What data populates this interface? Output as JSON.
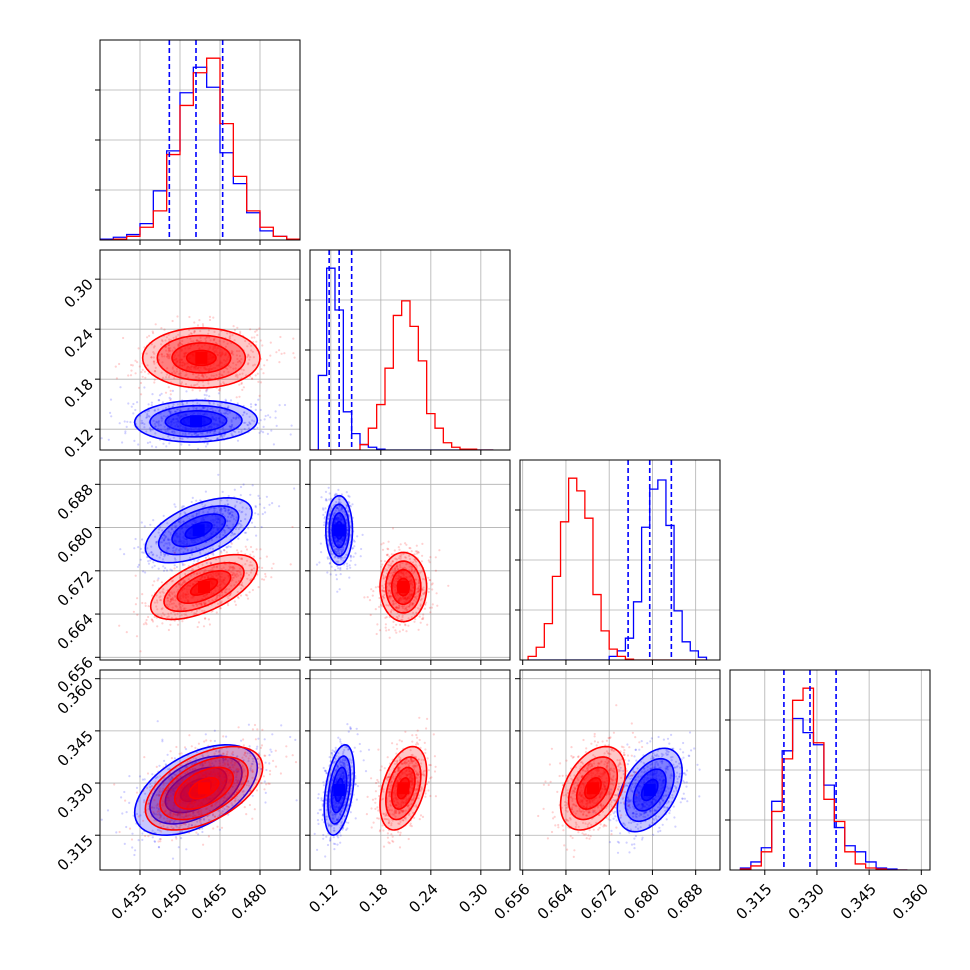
{
  "chart_data": {
    "type": "corner",
    "parameters": 4,
    "grid": true,
    "colors": {
      "series_a": "#0000ff",
      "series_b": "#ff0000"
    },
    "axes": [
      {
        "range": [
          0.42,
          0.495
        ],
        "ticks": [
          0.435,
          0.45,
          0.465,
          0.48
        ],
        "tick_labels": [
          "0.435",
          "0.450",
          "0.465",
          "0.480"
        ]
      },
      {
        "range": [
          0.095,
          0.335
        ],
        "ticks": [
          0.12,
          0.18,
          0.24,
          0.3
        ],
        "tick_labels": [
          "0.12",
          "0.18",
          "0.24",
          "0.30"
        ]
      },
      {
        "range": [
          0.6555,
          0.6925
        ],
        "ticks": [
          0.656,
          0.664,
          0.672,
          0.68,
          0.688
        ],
        "tick_labels": [
          "0.656",
          "0.664",
          "0.672",
          "0.680",
          "0.688"
        ]
      },
      {
        "range": [
          0.305,
          0.3625
        ],
        "ticks": [
          0.315,
          0.33,
          0.345,
          0.36
        ],
        "tick_labels": [
          "0.315",
          "0.330",
          "0.345",
          "0.360"
        ]
      }
    ],
    "quantiles": [
      [
        0.446,
        0.456,
        0.466
      ],
      [
        0.118,
        0.13,
        0.145
      ],
      [
        0.6755,
        0.6795,
        0.6835
      ],
      [
        0.3205,
        0.328,
        0.3355
      ]
    ],
    "histograms": [
      {
        "bin_edges": [
          0.42,
          0.425,
          0.43,
          0.435,
          0.44,
          0.445,
          0.45,
          0.455,
          0.46,
          0.465,
          0.47,
          0.475,
          0.48,
          0.485,
          0.49,
          0.495
        ],
        "series_a": [
          0.5,
          1.5,
          3,
          9,
          27,
          49,
          81,
          95,
          84,
          48,
          31,
          15,
          5,
          2,
          0.5
        ],
        "series_b": [
          0,
          0.5,
          2,
          7,
          16,
          47,
          74,
          92,
          100,
          64,
          35,
          16,
          7,
          2,
          0.5
        ]
      },
      {
        "bin_edges": [
          0.095,
          0.105,
          0.115,
          0.125,
          0.135,
          0.145,
          0.155,
          0.165,
          0.175,
          0.185,
          0.195,
          0.205,
          0.215,
          0.225,
          0.235,
          0.245,
          0.255,
          0.265,
          0.275,
          0.285,
          0.295,
          0.305,
          0.315
        ],
        "series_a": [
          0,
          41,
          100,
          77,
          21,
          9,
          3,
          1.5,
          0.5,
          0,
          0,
          0,
          0,
          0,
          0,
          0,
          0,
          0,
          0,
          0,
          0,
          0
        ],
        "series_b": [
          0,
          0,
          0,
          0,
          0,
          0,
          3,
          12,
          25,
          45,
          74,
          82,
          68,
          49,
          20,
          12,
          4,
          1.5,
          0.5,
          0.5,
          0,
          0
        ]
      },
      {
        "bin_edges": [
          0.657,
          0.6585,
          0.66,
          0.6615,
          0.663,
          0.6645,
          0.666,
          0.6675,
          0.669,
          0.6705,
          0.672,
          0.6735,
          0.675,
          0.6765,
          0.678,
          0.6795,
          0.681,
          0.6825,
          0.684,
          0.6855,
          0.687,
          0.6885,
          0.69
        ],
        "series_a": [
          0,
          0,
          0,
          0,
          0,
          0,
          0,
          0,
          0,
          0,
          2,
          5,
          12,
          32,
          73,
          94,
          99,
          74,
          27,
          10,
          5,
          1.5
        ],
        "series_b": [
          2,
          7,
          20,
          46,
          76,
          100,
          93,
          78,
          36,
          16,
          6,
          2,
          0.5,
          0,
          0,
          0,
          0,
          0,
          0,
          0,
          0,
          0
        ]
      },
      {
        "bin_edges": [
          0.308,
          0.311,
          0.314,
          0.317,
          0.32,
          0.323,
          0.326,
          0.329,
          0.332,
          0.335,
          0.338,
          0.341,
          0.344,
          0.347,
          0.35,
          0.353,
          0.356
        ],
        "series_a": [
          1,
          4,
          11,
          34,
          59,
          75,
          68,
          62,
          42,
          21,
          12,
          9,
          4,
          1,
          0.5,
          0
        ],
        "series_b": [
          0.5,
          2,
          9,
          29,
          55,
          84,
          90,
          63,
          35,
          24,
          9,
          3,
          1,
          0.5,
          0,
          0
        ]
      }
    ],
    "pairs": [
      {
        "row": 1,
        "col": 0,
        "series_a": {
          "mean": [
            0.456,
            0.1295
          ],
          "sd": [
            0.0115,
            0.0125
          ],
          "corr": 0.05
        },
        "series_b": {
          "mean": [
            0.458,
            0.2055
          ],
          "sd": [
            0.011,
            0.018
          ],
          "corr": 0.0
        }
      },
      {
        "row": 2,
        "col": 0,
        "series_a": {
          "mean": [
            0.457,
            0.6795
          ],
          "sd": [
            0.01,
            0.003
          ],
          "corr": 0.55
        },
        "series_b": {
          "mean": [
            0.459,
            0.669
          ],
          "sd": [
            0.01,
            0.003
          ],
          "corr": 0.6
        }
      },
      {
        "row": 2,
        "col": 1,
        "series_a": {
          "mean": [
            0.13,
            0.6795
          ],
          "sd": [
            0.008,
            0.0032
          ],
          "corr": 0.0
        },
        "series_b": {
          "mean": [
            0.207,
            0.669
          ],
          "sd": [
            0.014,
            0.0032
          ],
          "corr": 0.0
        }
      },
      {
        "row": 3,
        "col": 0,
        "series_a": {
          "mean": [
            0.456,
            0.328
          ],
          "sd": [
            0.0115,
            0.0065
          ],
          "corr": 0.5
        },
        "series_b": {
          "mean": [
            0.459,
            0.3285
          ],
          "sd": [
            0.011,
            0.006
          ],
          "corr": 0.5
        }
      },
      {
        "row": 3,
        "col": 1,
        "series_a": {
          "mean": [
            0.13,
            0.328
          ],
          "sd": [
            0.009,
            0.0065
          ],
          "corr": 0.4
        },
        "series_b": {
          "mean": [
            0.207,
            0.3285
          ],
          "sd": [
            0.014,
            0.006
          ],
          "corr": 0.4
        }
      },
      {
        "row": 3,
        "col": 2,
        "series_a": {
          "mean": [
            0.6795,
            0.328
          ],
          "sd": [
            0.003,
            0.006
          ],
          "corr": 0.45
        },
        "series_b": {
          "mean": [
            0.669,
            0.3285
          ],
          "sd": [
            0.003,
            0.006
          ],
          "corr": 0.4
        }
      }
    ]
  }
}
